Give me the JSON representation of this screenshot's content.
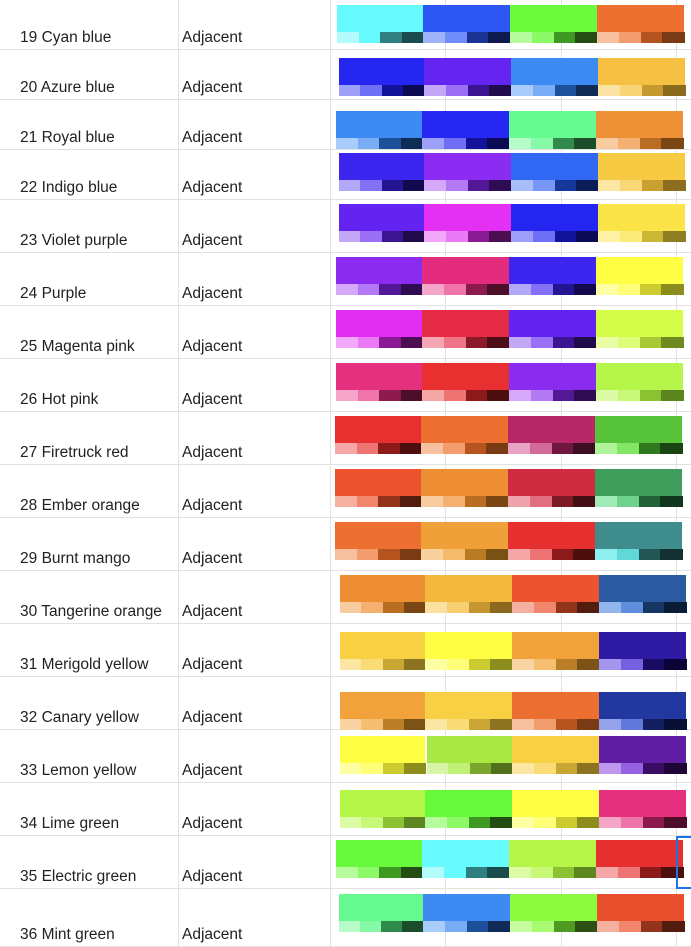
{
  "rows": [
    {
      "num": "19",
      "name": "Cyan blue",
      "type": "Adjacent",
      "palettes": [
        {
          "main": "#66fafe",
          "shades": [
            "#b3fcfe",
            "#66fafe",
            "#2f7f80",
            "#1a4c4d"
          ]
        },
        {
          "main": "#2d57f5",
          "shades": [
            "#9fb3fa",
            "#6f8cf8",
            "#1b3393",
            "#0e1a4e"
          ]
        },
        {
          "main": "#6cfa3c",
          "shades": [
            "#b6fc9d",
            "#8cfa66",
            "#3e9922",
            "#244d13"
          ]
        },
        {
          "main": "#ed7030",
          "shades": [
            "#f7c09f",
            "#f39c6d",
            "#b6541f",
            "#7a3a14"
          ]
        }
      ]
    },
    {
      "num": "20",
      "name": "Azure blue",
      "type": "Adjacent",
      "palettes": [
        {
          "main": "#2526f2",
          "shades": [
            "#9e9ff8",
            "#6e6ff5",
            "#12129a",
            "#0a0a55"
          ]
        },
        {
          "main": "#6525f1",
          "shades": [
            "#c3a8f8",
            "#9a6ef5",
            "#3c1592",
            "#200b4d"
          ]
        },
        {
          "main": "#3c8af3",
          "shades": [
            "#a9cdfa",
            "#78adf6",
            "#1e4f9b",
            "#102c56"
          ]
        },
        {
          "main": "#f6c142",
          "shades": [
            "#fbe4a3",
            "#f8d476",
            "#c69a2f",
            "#8a6b1e"
          ]
        }
      ]
    },
    {
      "num": "21",
      "name": "Royal blue",
      "type": "Adjacent",
      "palettes": [
        {
          "main": "#3d8af3",
          "shades": [
            "#a9cdfa",
            "#78adf6",
            "#1e4f9b",
            "#102c56"
          ]
        },
        {
          "main": "#2527f2",
          "shades": [
            "#9e9ff8",
            "#6e6ff5",
            "#12129a",
            "#0a0a55"
          ]
        },
        {
          "main": "#67fa90",
          "shades": [
            "#b6fcc9",
            "#86f9a6",
            "#308a4c",
            "#1b4d2a"
          ]
        },
        {
          "main": "#ee9035",
          "shades": [
            "#f8cba0",
            "#f4b070",
            "#b96d22",
            "#7a4614"
          ]
        }
      ]
    },
    {
      "num": "22",
      "name": "Indigo blue",
      "type": "Adjacent",
      "palettes": [
        {
          "main": "#3d25f0",
          "shades": [
            "#b2a8f8",
            "#8470f5",
            "#241592",
            "#13094f"
          ]
        },
        {
          "main": "#8b2cf2",
          "shades": [
            "#d4a9f9",
            "#b47af6",
            "#521897",
            "#2d0c52"
          ]
        },
        {
          "main": "#3068f3",
          "shades": [
            "#a8bdfa",
            "#7897f6",
            "#17379a",
            "#0b1d55"
          ]
        },
        {
          "main": "#f6ca42",
          "shades": [
            "#fbe6a3",
            "#f8d777",
            "#caa02f",
            "#8c6e1e"
          ]
        }
      ]
    },
    {
      "num": "23",
      "name": "Violet purple",
      "type": "Adjacent",
      "palettes": [
        {
          "main": "#6323f0",
          "shades": [
            "#c3a8f8",
            "#9a6ef5",
            "#3c1592",
            "#200b4d"
          ]
        },
        {
          "main": "#e330f2",
          "shades": [
            "#f3a9f9",
            "#eb7af6",
            "#8a1a93",
            "#4b0e50"
          ]
        },
        {
          "main": "#2525f1",
          "shades": [
            "#9e9ff8",
            "#6e6ff5",
            "#12129a",
            "#0a0a55"
          ]
        },
        {
          "main": "#fbe447",
          "shades": [
            "#fdf2a5",
            "#fbeb78",
            "#cbb733",
            "#8d7e22"
          ]
        }
      ]
    },
    {
      "num": "24",
      "name": "Purple",
      "type": "Adjacent",
      "palettes": [
        {
          "main": "#8a2cf0",
          "shades": [
            "#d4a9f9",
            "#b47af6",
            "#521897",
            "#2d0c52"
          ]
        },
        {
          "main": "#e42c7f",
          "shades": [
            "#f5a6c8",
            "#ee74aa",
            "#8c1a4d",
            "#4d0e2a"
          ]
        },
        {
          "main": "#3d25f0",
          "shades": [
            "#b2a8f8",
            "#8470f5",
            "#241592",
            "#13094f"
          ]
        },
        {
          "main": "#fefe45",
          "shades": [
            "#fefea3",
            "#fefe78",
            "#cccc31",
            "#8d8d1e"
          ]
        }
      ]
    },
    {
      "num": "25",
      "name": "Magenta pink",
      "type": "Adjacent",
      "palettes": [
        {
          "main": "#e12ef2",
          "shades": [
            "#f3a9f9",
            "#eb7af6",
            "#8a1a93",
            "#4b0e50"
          ]
        },
        {
          "main": "#e52a45",
          "shades": [
            "#f5a6b2",
            "#ee7487",
            "#8c1a2a",
            "#4d0e17"
          ]
        },
        {
          "main": "#6423f0",
          "shades": [
            "#c3a8f8",
            "#9a6ef5",
            "#3c1592",
            "#200b4d"
          ]
        },
        {
          "main": "#d4fc48",
          "shades": [
            "#eafea5",
            "#defd79",
            "#a8c933",
            "#708a22"
          ]
        }
      ]
    },
    {
      "num": "26",
      "name": "Hot pink",
      "type": "Adjacent",
      "palettes": [
        {
          "main": "#e5307e",
          "shades": [
            "#f5a6c8",
            "#ee74aa",
            "#8c1a4d",
            "#4d0e2a"
          ]
        },
        {
          "main": "#e7302f",
          "shades": [
            "#f5a6a6",
            "#ee7474",
            "#8c1a1a",
            "#4d0e0e"
          ]
        },
        {
          "main": "#8a2cf0",
          "shades": [
            "#d4a9f9",
            "#b47af6",
            "#521897",
            "#2d0c52"
          ]
        },
        {
          "main": "#b6f549",
          "shades": [
            "#dbfba5",
            "#c8f878",
            "#8bc232",
            "#5d8621"
          ]
        }
      ]
    },
    {
      "num": "27",
      "name": "Firetruck red",
      "type": "Adjacent",
      "palettes": [
        {
          "main": "#e7302f",
          "shades": [
            "#f5a6a6",
            "#ee7474",
            "#8c1a1a",
            "#4d0e0e"
          ]
        },
        {
          "main": "#ed6f31",
          "shades": [
            "#f7c09f",
            "#f39c6d",
            "#b6541f",
            "#7a3a14"
          ]
        },
        {
          "main": "#b52867",
          "shades": [
            "#e8a3c3",
            "#d26a9a",
            "#6e1840",
            "#3d0d23"
          ]
        },
        {
          "main": "#56c33a",
          "shades": [
            "#aef59a",
            "#82e864",
            "#2f7a1f",
            "#1a4512"
          ]
        }
      ]
    },
    {
      "num": "28",
      "name": "Ember orange",
      "type": "Adjacent",
      "palettes": [
        {
          "main": "#ec5430",
          "shades": [
            "#f6b09f",
            "#f1866d",
            "#92331c",
            "#521c0f"
          ]
        },
        {
          "main": "#ee8e33",
          "shades": [
            "#f8cba0",
            "#f4b070",
            "#b96d22",
            "#7a4614"
          ]
        },
        {
          "main": "#cd2c41",
          "shades": [
            "#f0a3ad",
            "#e06e7e",
            "#7d1a27",
            "#440e15"
          ]
        },
        {
          "main": "#3f9e5c",
          "shades": [
            "#9feab5",
            "#6fd28d",
            "#236138",
            "#12351e"
          ]
        }
      ]
    },
    {
      "num": "29",
      "name": "Burnt mango",
      "type": "Adjacent",
      "palettes": [
        {
          "main": "#ed6f31",
          "shades": [
            "#f7c09f",
            "#f39c6d",
            "#b6541f",
            "#7a3a14"
          ]
        },
        {
          "main": "#efa038",
          "shades": [
            "#f8d19f",
            "#f4bb6d",
            "#b97a22",
            "#7a5114"
          ]
        },
        {
          "main": "#e5302f",
          "shades": [
            "#f5a6a6",
            "#ee7474",
            "#8c1a1a",
            "#4d0e0e"
          ]
        },
        {
          "main": "#3e8d8c",
          "shades": [
            "#8ef0ee",
            "#5fd9d7",
            "#235554",
            "#12302f"
          ]
        }
      ]
    },
    {
      "num": "30",
      "name": "Tangerine orange",
      "type": "Adjacent",
      "palettes": [
        {
          "main": "#ee8e33",
          "shades": [
            "#f8cba0",
            "#f4b070",
            "#b96d22",
            "#7a4614"
          ]
        },
        {
          "main": "#f2b93e",
          "shades": [
            "#fbe0a0",
            "#f7cf70",
            "#c5962f",
            "#8a681e"
          ]
        },
        {
          "main": "#ec5430",
          "shades": [
            "#f6b09f",
            "#f1866d",
            "#92331c",
            "#521c0f"
          ]
        },
        {
          "main": "#2a5ba1",
          "shades": [
            "#92b6ec",
            "#5f8fdc",
            "#163562",
            "#0b1d36"
          ]
        }
      ]
    },
    {
      "num": "31",
      "name": "Merigold yellow",
      "type": "Adjacent",
      "palettes": [
        {
          "main": "#f7d044",
          "shades": [
            "#fbe7a3",
            "#f9dc76",
            "#c9a533",
            "#8c7322"
          ]
        },
        {
          "main": "#fefe45",
          "shades": [
            "#fefea3",
            "#fefe78",
            "#cccc31",
            "#8d8d1e"
          ]
        },
        {
          "main": "#f1a23b",
          "shades": [
            "#f9d3a1",
            "#f5be70",
            "#bb7e26",
            "#7c5316"
          ]
        },
        {
          "main": "#2f1ba3",
          "shades": [
            "#a496ee",
            "#7561e0",
            "#170b63",
            "#0b0437"
          ]
        }
      ]
    },
    {
      "num": "32",
      "name": "Canary yellow",
      "type": "Adjacent",
      "palettes": [
        {
          "main": "#f1a23b",
          "shades": [
            "#f9d3a1",
            "#f5be70",
            "#bb7e26",
            "#7c5316"
          ]
        },
        {
          "main": "#f7d044",
          "shades": [
            "#fbe7a3",
            "#f9dc76",
            "#c9a533",
            "#8c7322"
          ]
        },
        {
          "main": "#ec6f32",
          "shades": [
            "#f7c09f",
            "#f39c6d",
            "#b6541f",
            "#7a3a14"
          ]
        },
        {
          "main": "#2337a1",
          "shades": [
            "#94a3ec",
            "#6278dc",
            "#131f61",
            "#091036"
          ]
        }
      ]
    },
    {
      "num": "33",
      "name": "Lemon yellow",
      "type": "Adjacent",
      "palettes": [
        {
          "main": "#fefe45",
          "shades": [
            "#fefea3",
            "#fefe78",
            "#cccc31",
            "#8d8d1e"
          ]
        },
        {
          "main": "#a9e843",
          "shades": [
            "#d6f5a5",
            "#bff078",
            "#7ba62d",
            "#50701c"
          ]
        },
        {
          "main": "#f7d044",
          "shades": [
            "#fbe7a3",
            "#f9dc76",
            "#c9a533",
            "#8c7322"
          ]
        },
        {
          "main": "#5e1da3",
          "shades": [
            "#bd96ee",
            "#9561e0",
            "#3a0c63",
            "#1f0537"
          ]
        }
      ]
    },
    {
      "num": "34",
      "name": "Lime green",
      "type": "Adjacent",
      "palettes": [
        {
          "main": "#b5f548",
          "shades": [
            "#dbfba5",
            "#c8f878",
            "#8bc232",
            "#5d8621"
          ]
        },
        {
          "main": "#67fa3c",
          "shades": [
            "#b6fc9d",
            "#8cfa66",
            "#3e9922",
            "#244d13"
          ]
        },
        {
          "main": "#fefe45",
          "shades": [
            "#fefea3",
            "#fefe78",
            "#cccc31",
            "#8d8d1e"
          ]
        },
        {
          "main": "#e5307e",
          "shades": [
            "#f5a6c8",
            "#ee74aa",
            "#8c1a4d",
            "#4d0e2a"
          ]
        }
      ]
    },
    {
      "num": "35",
      "name": "Electric green",
      "type": "Adjacent",
      "palettes": [
        {
          "main": "#67fa3c",
          "shades": [
            "#b6fc9d",
            "#8cfa66",
            "#3e9922",
            "#244d13"
          ]
        },
        {
          "main": "#66fafe",
          "shades": [
            "#b3fcfe",
            "#66fafe",
            "#2f7f80",
            "#1a4c4d"
          ]
        },
        {
          "main": "#b5f548",
          "shades": [
            "#dbfba5",
            "#c8f878",
            "#8bc232",
            "#5d8621"
          ]
        },
        {
          "main": "#e5302f",
          "shades": [
            "#f5a6a6",
            "#ee7474",
            "#8c1a1a",
            "#4d0e0e"
          ]
        }
      ]
    },
    {
      "num": "36",
      "name": "Mint green",
      "type": "Adjacent",
      "palettes": [
        {
          "main": "#66f990",
          "shades": [
            "#b6fcc9",
            "#86f9a6",
            "#308a4c",
            "#1b4d2a"
          ]
        },
        {
          "main": "#3d8af3",
          "shades": [
            "#a9cdfa",
            "#78adf6",
            "#1e4f9b",
            "#102c56"
          ]
        },
        {
          "main": "#8cfa3f",
          "shades": [
            "#c6fca0",
            "#a8fa70",
            "#4e9a22",
            "#2c5013"
          ]
        },
        {
          "main": "#e94f2d",
          "shades": [
            "#f6b09f",
            "#f1866d",
            "#92331c",
            "#521c0f"
          ]
        }
      ]
    }
  ]
}
